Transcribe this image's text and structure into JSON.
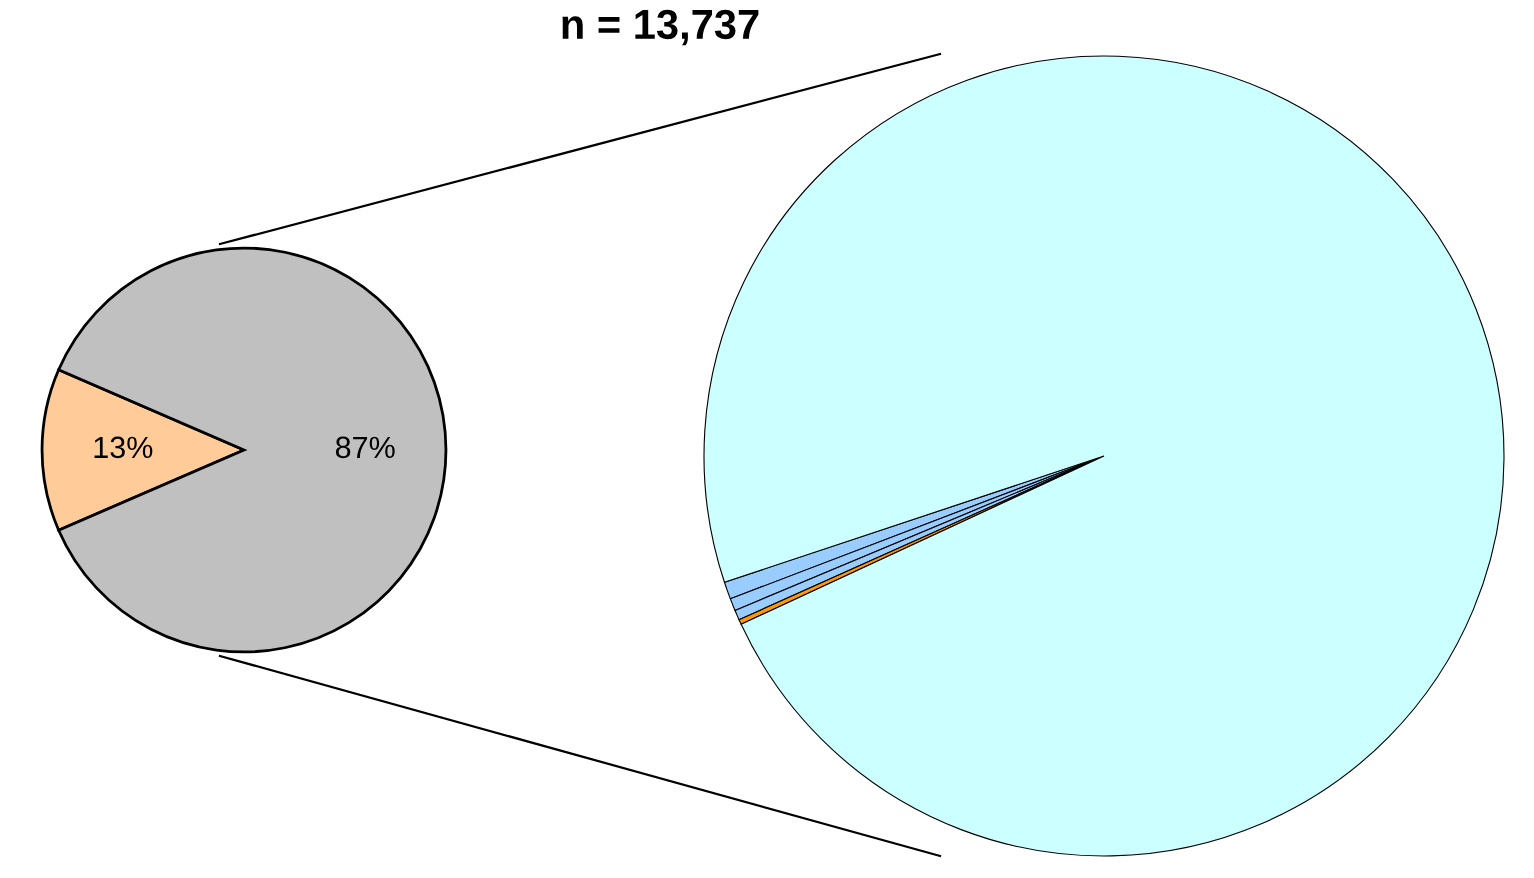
{
  "chart_data": [
    {
      "type": "pie",
      "title": "n = 13,737",
      "categories": [
        null,
        null
      ],
      "values": [
        13,
        87
      ],
      "colors": [
        "#ffcc99",
        "#c0c0c0"
      ],
      "value_labels": [
        "13%",
        "87%"
      ]
    },
    {
      "type": "pie",
      "categories": [
        null,
        null,
        null,
        null,
        null
      ],
      "values": [
        0.7,
        0.5,
        0.4,
        0.2,
        98.2
      ],
      "colors": [
        "#99ccff",
        "#99ccff",
        "#99ccff",
        "#ff9900",
        "#ccffff"
      ]
    }
  ]
}
